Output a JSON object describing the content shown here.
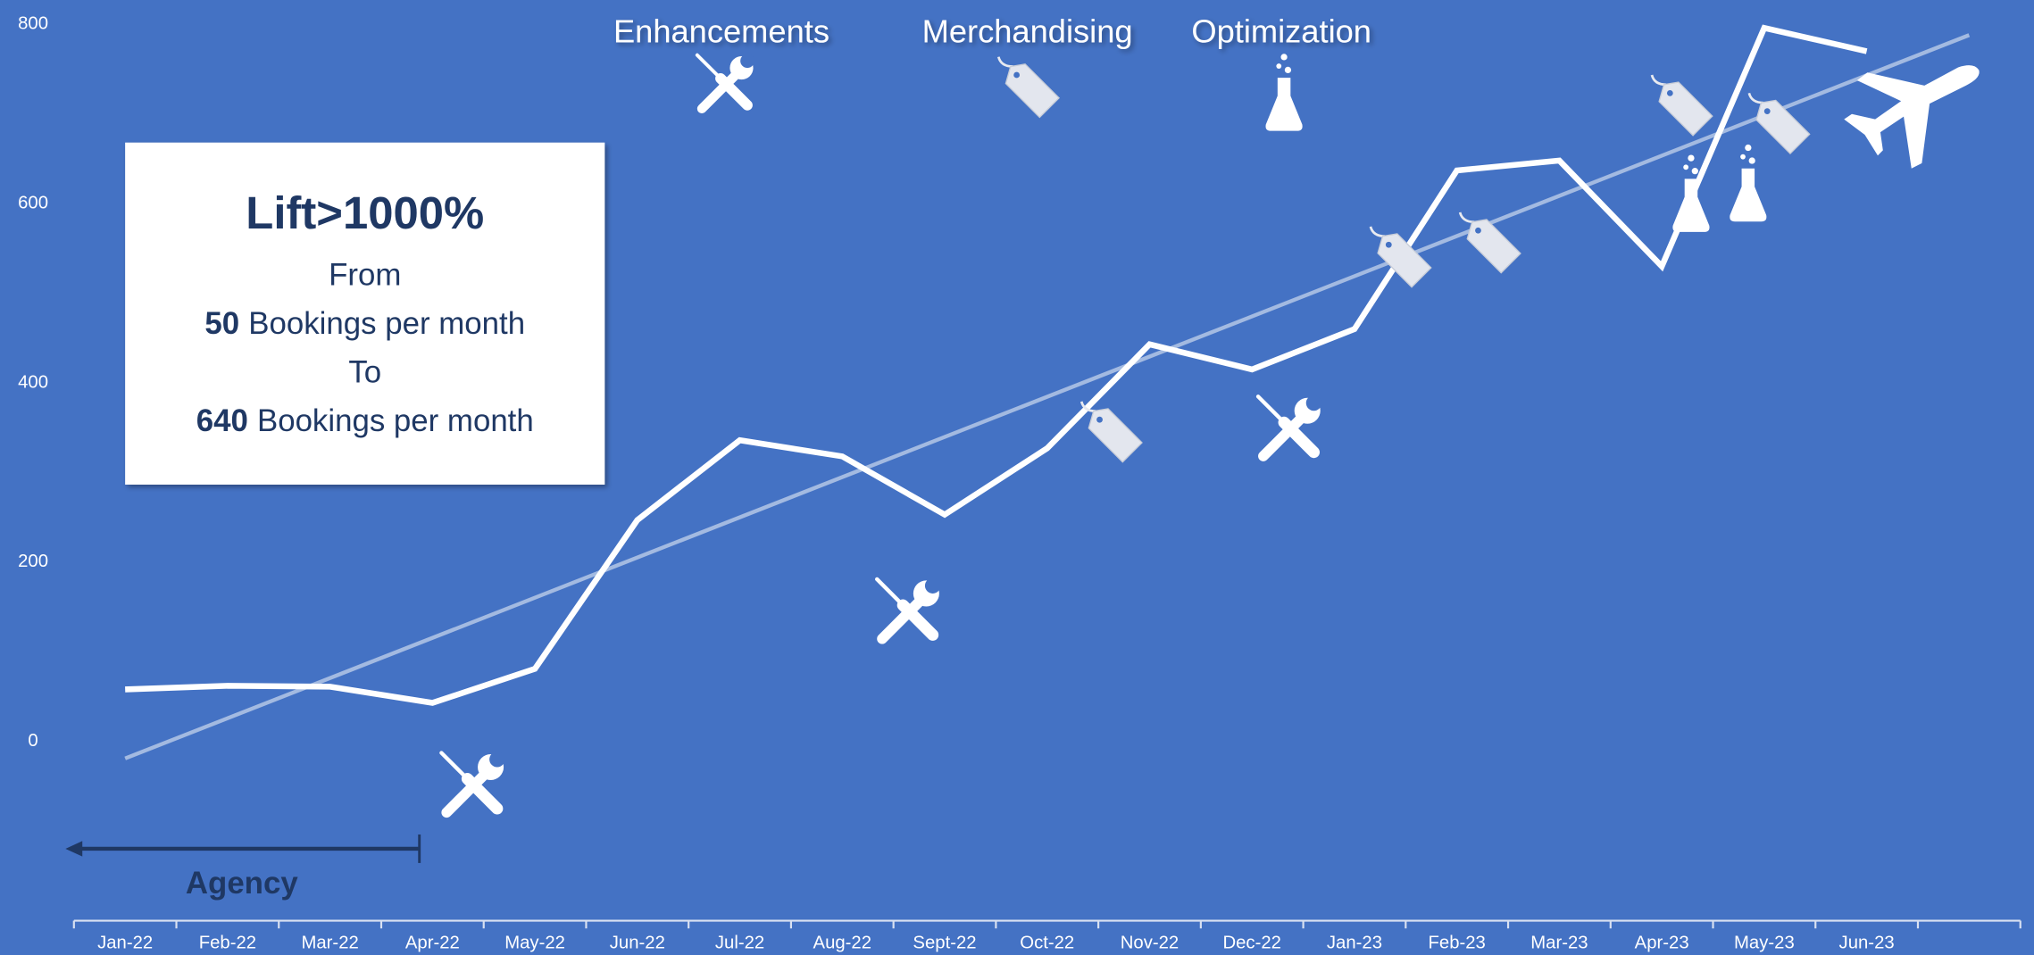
{
  "chart_data": {
    "type": "line",
    "categories": [
      "Jan-22",
      "Feb-22",
      "Mar-22",
      "Apr-22",
      "May-22",
      "Jun-22",
      "Jul-22",
      "Aug-22",
      "Sept-22",
      "Oct-22",
      "Nov-22",
      "Dec-22",
      "Jan-23",
      "Feb-23",
      "Mar-23",
      "Apr-23",
      "May-23",
      "Jun-23",
      null
    ],
    "values": [
      58,
      62,
      61,
      43,
      81,
      247,
      336,
      318,
      253,
      327,
      443,
      415,
      460,
      637,
      648,
      530,
      796,
      770,
      null
    ],
    "color": "#ffffff",
    "trendline": {
      "from": -19,
      "to": 788,
      "color": "#b4c7e7"
    },
    "ylim": [
      -200,
      825
    ],
    "yticks": [
      0,
      200,
      400,
      600,
      800
    ],
    "grid": false,
    "annotations": [
      "Enhancements",
      "Merchandising",
      "Optimization"
    ],
    "callout": {
      "title": "Lift>1000%",
      "lines": [
        {
          "text": "From"
        },
        {
          "value": 50,
          "text": "Bookings per month"
        },
        {
          "text": "To"
        },
        {
          "value": 640,
          "text": "Bookings per month"
        }
      ]
    },
    "agency": "Agency"
  }
}
